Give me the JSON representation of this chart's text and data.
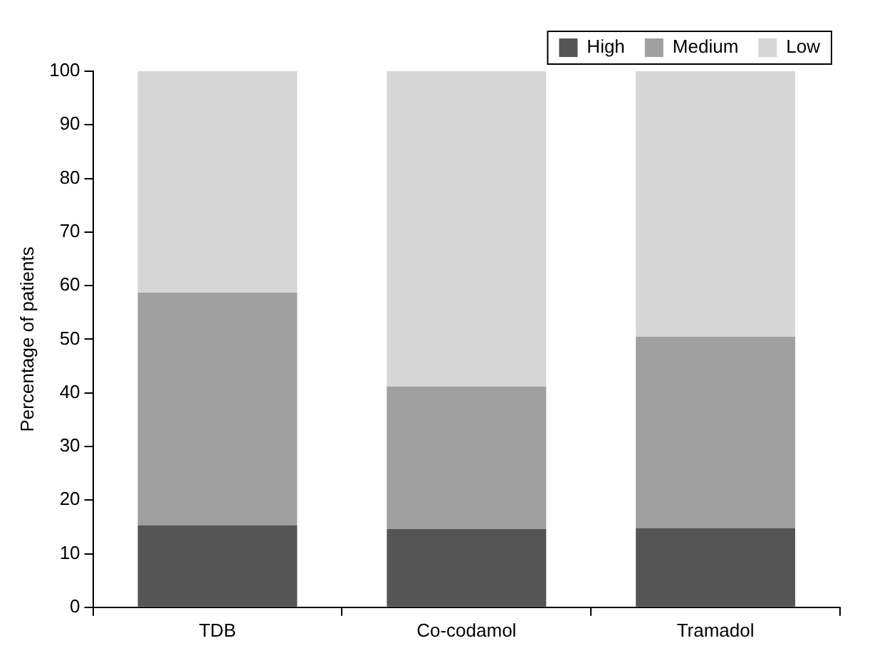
{
  "chart_data": {
    "type": "bar",
    "stacked": true,
    "ylabel": "Percentage of patients",
    "categories": [
      "TDB",
      "Co-codamol",
      "Tramadol"
    ],
    "series": [
      {
        "name": "High",
        "color": "#555555",
        "values": [
          15.3,
          14.6,
          14.8
        ]
      },
      {
        "name": "Medium",
        "color": "#a0a0a0",
        "values": [
          43.4,
          26.6,
          35.7
        ]
      },
      {
        "name": "Low",
        "color": "#d6d6d6",
        "values": [
          41.3,
          58.8,
          49.5
        ]
      }
    ],
    "ylim": [
      0,
      100
    ],
    "yticks": [
      0,
      10,
      20,
      30,
      40,
      50,
      60,
      70,
      80,
      90,
      100
    ],
    "grid": false,
    "legend": "top right"
  }
}
